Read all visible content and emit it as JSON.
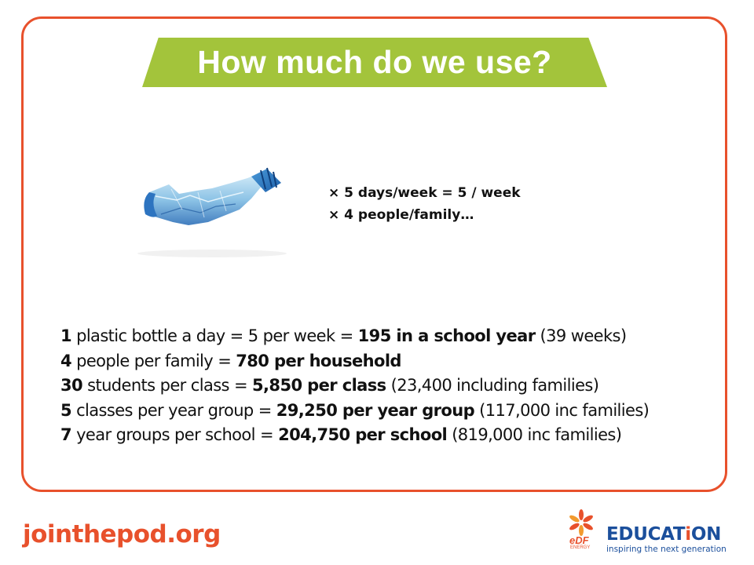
{
  "slide": {
    "title": "How much do we use?",
    "multipliers": [
      "× 5 days/week = 5 / week",
      "× 4 people/family…"
    ],
    "facts": [
      {
        "num": "1",
        "text": " plastic bottle a day = 5 per week = ",
        "bold": "195 in a school year",
        "extra": " (39 weeks)"
      },
      {
        "num": "4",
        "text": " people per family = ",
        "bold": "780 per household",
        "extra": ""
      },
      {
        "num": "30",
        "text": " students per class = ",
        "bold": "5,850 per class",
        "extra": " (23,400 including families)"
      },
      {
        "num": "5",
        "text": " classes per year group = ",
        "bold": "29,250 per year group",
        "extra": " (117,000 inc families)"
      },
      {
        "num": "7",
        "text": " year groups per school = ",
        "bold": "204,750 per school",
        "extra": " (819,000 inc families)"
      }
    ]
  },
  "footer": {
    "url": "jointhepod.org",
    "logo": {
      "brand": "eDF",
      "sub": "ENERGY",
      "edu_main": "EDUCAT",
      "edu_accent": "i",
      "edu_end": "ON",
      "tagline": "inspiring the next generation"
    }
  },
  "colors": {
    "frame": "#e8512c",
    "banner": "#a3c43b",
    "url": "#e8512c",
    "logo_blue": "#1b4f9c"
  },
  "icons": [
    "crushed-plastic-bottle-image",
    "edf-flower-logo-icon"
  ]
}
